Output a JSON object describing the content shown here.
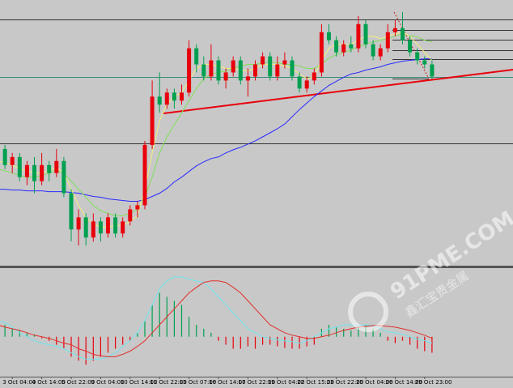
{
  "chart_data": {
    "type": "candlestick",
    "categories": [
      null,
      null,
      "3 Oct 04:00",
      null,
      null,
      null,
      "4 Oct 14:00",
      null,
      null,
      null,
      "5 Oct 22:00",
      null,
      null,
      null,
      "9 Oct 04:00",
      null,
      null,
      null,
      "10 Oct 14:00",
      null,
      null,
      null,
      "11 Oct 22:00",
      null,
      null,
      null,
      "15 Oct 07:00",
      null,
      null,
      null,
      "16 Oct 14:00",
      null,
      null,
      null,
      "17 Oct 22:00",
      null,
      null,
      null,
      "19 Oct 04:00",
      null,
      null,
      null,
      "22 Oct 15:00",
      null,
      null,
      null,
      "23 Oct 22:00",
      null,
      null,
      null,
      "25 Oct 04:00",
      null,
      null,
      null,
      "26 Oct 14:00",
      null,
      null,
      null,
      "29 Oct 23:00",
      null
    ],
    "open": [
      135,
      145,
      125,
      135,
      110,
      125,
      105,
      125,
      115,
      130,
      90,
      45,
      60,
      35,
      55,
      40,
      60,
      40,
      55,
      70,
      75,
      150,
      210,
      200,
      215,
      205,
      215,
      270,
      250,
      235,
      255,
      230,
      240,
      255,
      230,
      235,
      250,
      260,
      235,
      250,
      255,
      235,
      220,
      230,
      240,
      290,
      280,
      265,
      275,
      270,
      300,
      275,
      260,
      270,
      290,
      295,
      280,
      265,
      255,
      250
    ],
    "close": [
      145,
      125,
      135,
      110,
      125,
      105,
      125,
      115,
      130,
      90,
      45,
      60,
      35,
      55,
      40,
      60,
      40,
      55,
      70,
      75,
      150,
      210,
      200,
      215,
      205,
      215,
      270,
      250,
      235,
      255,
      230,
      240,
      255,
      230,
      235,
      250,
      260,
      235,
      250,
      255,
      235,
      220,
      230,
      240,
      290,
      280,
      265,
      275,
      270,
      300,
      275,
      260,
      270,
      290,
      295,
      280,
      265,
      255,
      250,
      235
    ],
    "high": [
      150,
      150,
      140,
      140,
      130,
      135,
      140,
      130,
      145,
      135,
      95,
      70,
      65,
      65,
      60,
      65,
      65,
      60,
      75,
      80,
      155,
      230,
      240,
      220,
      220,
      225,
      280,
      275,
      260,
      275,
      260,
      245,
      260,
      260,
      245,
      255,
      265,
      265,
      260,
      265,
      260,
      240,
      235,
      245,
      300,
      300,
      285,
      280,
      285,
      310,
      305,
      280,
      275,
      300,
      305,
      315,
      285,
      270,
      260,
      255
    ],
    "low": [
      130,
      120,
      115,
      105,
      100,
      90,
      100,
      105,
      110,
      85,
      30,
      25,
      25,
      30,
      30,
      35,
      35,
      35,
      50,
      60,
      70,
      145,
      190,
      195,
      195,
      200,
      210,
      240,
      230,
      230,
      225,
      220,
      235,
      225,
      210,
      230,
      245,
      230,
      230,
      245,
      230,
      215,
      215,
      225,
      235,
      275,
      260,
      260,
      265,
      265,
      270,
      255,
      255,
      265,
      285,
      275,
      260,
      250,
      245,
      232
    ],
    "ylim": [
      0,
      330
    ],
    "ma": [
      {
        "color": "#2a2aff",
        "values": [
          95,
          95,
          94,
          94,
          93,
          93,
          93,
          92,
          92,
          92,
          91,
          90,
          88,
          86,
          85,
          83,
          82,
          81,
          80,
          80,
          82,
          86,
          90,
          96,
          104,
          110,
          117,
          124,
          129,
          133,
          135,
          140,
          144,
          147,
          151,
          155,
          160,
          165,
          170,
          176,
          185,
          194,
          202,
          210,
          217,
          224,
          229,
          234,
          238,
          240,
          243,
          245,
          247,
          250,
          252,
          254,
          255,
          256,
          257,
          257
        ]
      },
      {
        "color": "#7ee05a",
        "values": [
          120,
          118,
          115,
          112,
          110,
          110,
          112,
          115,
          118,
          115,
          105,
          95,
          85,
          75,
          68,
          65,
          62,
          62,
          65,
          70,
          85,
          110,
          140,
          160,
          175,
          190,
          205,
          220,
          232,
          238,
          240,
          242,
          245,
          248,
          250,
          250,
          252,
          253,
          252,
          250,
          250,
          248,
          245,
          245,
          250,
          258,
          262,
          265,
          268,
          272,
          275,
          278,
          280,
          282,
          285,
          288,
          286,
          284,
          280,
          278
        ]
      },
      {
        "color": "#f2f07a",
        "values": [
          130,
          128,
          125,
          120,
          118,
          115,
          115,
          118,
          122,
          115,
          95,
          75,
          60,
          52,
          48,
          48,
          50,
          50,
          55,
          62,
          95,
          140,
          180,
          200,
          210,
          215,
          230,
          245,
          250,
          250,
          248,
          245,
          245,
          243,
          242,
          245,
          250,
          250,
          250,
          248,
          245,
          238,
          232,
          235,
          255,
          270,
          275,
          275,
          275,
          280,
          285,
          285,
          282,
          285,
          288,
          290,
          285,
          275,
          265,
          255
        ]
      }
    ],
    "up_color": "#e8000b",
    "down_color": "#00a050",
    "macd": {
      "ylim": [
        -50,
        85
      ],
      "histogram": [
        20,
        15,
        10,
        8,
        5,
        3,
        -2,
        -5,
        -10,
        -15,
        -25,
        -30,
        -35,
        -30,
        -25,
        -20,
        -15,
        -10,
        -5,
        5,
        20,
        40,
        55,
        50,
        45,
        40,
        25,
        15,
        10,
        5,
        -5,
        -10,
        -15,
        -15,
        -12,
        -15,
        -10,
        -10,
        -12,
        -14,
        -15,
        -15,
        -12,
        -10,
        10,
        15,
        12,
        10,
        8,
        12,
        15,
        10,
        5,
        -5,
        -8,
        -5,
        -10,
        -15,
        -18,
        -20
      ],
      "lines": [
        {
          "color": "#6fe6f0",
          "values": [
            20,
            18,
            12,
            5,
            0,
            -5,
            -8,
            -10,
            -12,
            -15,
            -20,
            -25,
            -28,
            -28,
            -28,
            -25,
            -20,
            -12,
            -5,
            5,
            20,
            40,
            60,
            70,
            75,
            75,
            72,
            70,
            68,
            60,
            50,
            40,
            30,
            20,
            10,
            5,
            0,
            -2,
            -4,
            -5,
            -6,
            -8,
            -5,
            0,
            5,
            10,
            12,
            15,
            15,
            14,
            15,
            14,
            10,
            6,
            5,
            3,
            0,
            -3,
            -5,
            -8
          ]
        },
        {
          "color": "#e0302a",
          "values": [
            15,
            12,
            10,
            8,
            5,
            2,
            0,
            -2,
            -5,
            -8,
            -10,
            -15,
            -18,
            -22,
            -24,
            -25,
            -25,
            -22,
            -18,
            -12,
            -5,
            5,
            15,
            25,
            35,
            45,
            55,
            62,
            68,
            70,
            70,
            68,
            62,
            55,
            45,
            35,
            25,
            15,
            10,
            5,
            2,
            0,
            -2,
            -2,
            0,
            2,
            5,
            8,
            10,
            12,
            13,
            14,
            14,
            13,
            12,
            10,
            8,
            5,
            2,
            -2
          ]
        }
      ]
    },
    "watermark": {
      "site": "91PME.COM",
      "brand": "鑫汇宝贵金属"
    }
  }
}
